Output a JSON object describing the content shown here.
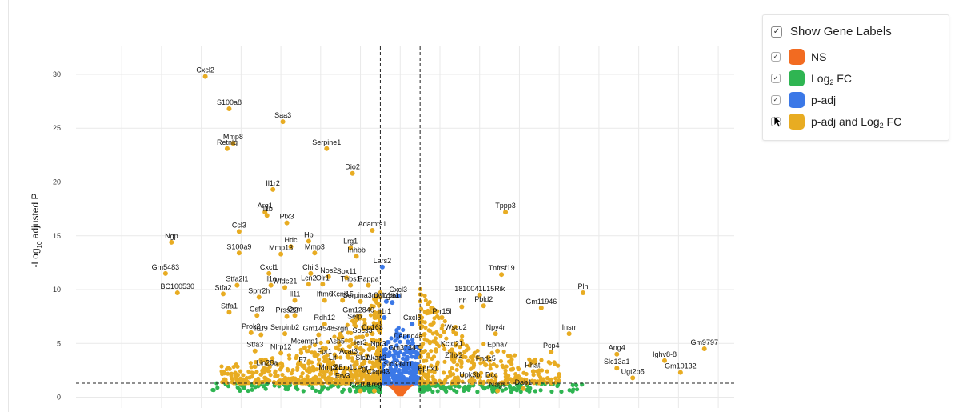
{
  "chart_data": {
    "type": "scatter",
    "title": "",
    "ylabel": "-Log10 adjusted P",
    "ylabel_main": "-Log",
    "ylabel_sub": "10",
    "ylabel_rest": " adjusted P",
    "xlabel": "",
    "ylim": [
      -1,
      32.6
    ],
    "xlim": [
      -16.3,
      16.8
    ],
    "y_ticks": [
      0,
      5,
      10,
      15,
      20,
      25,
      30
    ],
    "x_grid": [
      -14,
      -12,
      -10,
      -8,
      -6,
      -4,
      -2,
      0,
      2,
      4,
      6,
      8,
      10,
      12,
      14,
      16
    ],
    "fc_cutoffs": [
      -1,
      1
    ],
    "p_cutoff": 1.3,
    "grid": true,
    "colors": {
      "NS": "#f26b21",
      "Log2FC": "#2fb552",
      "padj": "#3b78e7",
      "both": "#e8ac22"
    },
    "labeled_genes": [
      {
        "gene": "Cxcl2",
        "x": -9.8,
        "y": 29.8
      },
      {
        "gene": "S100a8",
        "x": -8.6,
        "y": 26.8
      },
      {
        "gene": "Saa3",
        "x": -5.9,
        "y": 25.6
      },
      {
        "gene": "Mmp8",
        "x": -8.4,
        "y": 23.6
      },
      {
        "gene": "Retnlg",
        "x": -8.7,
        "y": 23.1
      },
      {
        "gene": "Serpine1",
        "x": -3.7,
        "y": 23.1
      },
      {
        "gene": "Dio2",
        "x": -2.4,
        "y": 20.8
      },
      {
        "gene": "Il1r2",
        "x": -6.4,
        "y": 19.3
      },
      {
        "gene": "Arg1",
        "x": -6.8,
        "y": 17.2
      },
      {
        "gene": "Il1b",
        "x": -6.7,
        "y": 16.9
      },
      {
        "gene": "Tppp3",
        "x": 5.3,
        "y": 17.2
      },
      {
        "gene": "Ptx3",
        "x": -5.7,
        "y": 16.2
      },
      {
        "gene": "Ccl3",
        "x": -8.1,
        "y": 15.4
      },
      {
        "gene": "Adamts1",
        "x": -1.4,
        "y": 15.5
      },
      {
        "gene": "Hp",
        "x": -4.6,
        "y": 14.5
      },
      {
        "gene": "Ngp",
        "x": -11.5,
        "y": 14.4
      },
      {
        "gene": "Hdc",
        "x": -5.5,
        "y": 14.0
      },
      {
        "gene": "Lrg1",
        "x": -2.5,
        "y": 13.9
      },
      {
        "gene": "S100a9",
        "x": -8.1,
        "y": 13.4
      },
      {
        "gene": "Mmp13",
        "x": -6.0,
        "y": 13.3
      },
      {
        "gene": "Mmp3",
        "x": -4.3,
        "y": 13.4
      },
      {
        "gene": "Inhbb",
        "x": -2.2,
        "y": 13.1
      },
      {
        "gene": "Lars2",
        "x": -0.9,
        "y": 12.1
      },
      {
        "gene": "Gm5483",
        "x": -11.8,
        "y": 11.5
      },
      {
        "gene": "Cxcl1",
        "x": -6.6,
        "y": 11.5
      },
      {
        "gene": "Chil3",
        "x": -4.5,
        "y": 11.5
      },
      {
        "gene": "Nos2",
        "x": -3.6,
        "y": 11.2
      },
      {
        "gene": "Sox11",
        "x": -2.7,
        "y": 11.1
      },
      {
        "gene": "Tnfrsf19",
        "x": 5.1,
        "y": 11.4
      },
      {
        "gene": "Stfa2l1",
        "x": -8.2,
        "y": 10.4
      },
      {
        "gene": "Il1a",
        "x": -6.5,
        "y": 10.4
      },
      {
        "gene": "Lcn2",
        "x": -4.6,
        "y": 10.5
      },
      {
        "gene": "Olr1",
        "x": -3.9,
        "y": 10.5
      },
      {
        "gene": "Wfdc21",
        "x": -5.8,
        "y": 10.2
      },
      {
        "gene": "Thbs1",
        "x": -2.5,
        "y": 10.4
      },
      {
        "gene": "Pappa",
        "x": -1.6,
        "y": 10.4
      },
      {
        "gene": "Cxcl3",
        "x": -0.1,
        "y": 9.4
      },
      {
        "gene": "Pln",
        "x": 9.2,
        "y": 9.7
      },
      {
        "gene": "BC100530",
        "x": -11.2,
        "y": 9.7
      },
      {
        "gene": "Stfa2",
        "x": -8.9,
        "y": 9.6
      },
      {
        "gene": "Sprr2h",
        "x": -7.1,
        "y": 9.3
      },
      {
        "gene": "1810041L15Rik",
        "x": 4.0,
        "y": 9.5
      },
      {
        "gene": "Il11",
        "x": -5.3,
        "y": 9.0
      },
      {
        "gene": "Iftm6",
        "x": -3.8,
        "y": 9.0
      },
      {
        "gene": "Kcnj15",
        "x": -2.9,
        "y": 9.0
      },
      {
        "gene": "Serpina3m",
        "x": -2.0,
        "y": 8.9
      },
      {
        "gene": "Col11a1",
        "x": -0.7,
        "y": 8.9
      },
      {
        "gene": "Tgfbr1",
        "x": -0.4,
        "y": 8.8
      },
      {
        "gene": "Ihh",
        "x": 3.1,
        "y": 8.4
      },
      {
        "gene": "Pbld2",
        "x": 4.2,
        "y": 8.5
      },
      {
        "gene": "Gm11946",
        "x": 7.1,
        "y": 8.3
      },
      {
        "gene": "Stfa1",
        "x": -8.6,
        "y": 7.9
      },
      {
        "gene": "Csf3",
        "x": -7.2,
        "y": 7.6
      },
      {
        "gene": "Prss22",
        "x": -5.7,
        "y": 7.5
      },
      {
        "gene": "Osm",
        "x": -5.3,
        "y": 7.6
      },
      {
        "gene": "Rdh12",
        "x": -3.8,
        "y": 6.8
      },
      {
        "gene": "Gm12840",
        "x": -2.1,
        "y": 7.5
      },
      {
        "gene": "Selp",
        "x": -2.3,
        "y": 6.9
      },
      {
        "gene": "Il1r1",
        "x": -0.8,
        "y": 7.4
      },
      {
        "gene": "Prr15l",
        "x": 2.1,
        "y": 7.4
      },
      {
        "gene": "Cxcl5",
        "x": 0.6,
        "y": 6.8
      },
      {
        "gene": "Prok2",
        "x": -7.5,
        "y": 6.0
      },
      {
        "gene": "Il1f9",
        "x": -7.0,
        "y": 5.8
      },
      {
        "gene": "Serpinb2",
        "x": -5.8,
        "y": 5.9
      },
      {
        "gene": "Gm14548",
        "x": -4.1,
        "y": 5.8
      },
      {
        "gene": "Srgn",
        "x": -3.0,
        "y": 5.8
      },
      {
        "gene": "Socs3",
        "x": -1.9,
        "y": 5.6
      },
      {
        "gene": "Cd163",
        "x": -1.4,
        "y": 5.9
      },
      {
        "gene": "Wscd2",
        "x": 2.8,
        "y": 5.9
      },
      {
        "gene": "Npy4r",
        "x": 4.8,
        "y": 5.9
      },
      {
        "gene": "Insrr",
        "x": 8.5,
        "y": 5.9
      },
      {
        "gene": "Gm9797",
        "x": 15.3,
        "y": 4.5
      },
      {
        "gene": "Dennd4a",
        "x": 0.4,
        "y": 5.1
      },
      {
        "gene": "Stfa3",
        "x": -7.3,
        "y": 4.3
      },
      {
        "gene": "Mcemp1",
        "x": -4.8,
        "y": 4.6
      },
      {
        "gene": "Asb5",
        "x": -3.2,
        "y": 4.6
      },
      {
        "gene": "Ier3",
        "x": -2.0,
        "y": 4.5
      },
      {
        "gene": "Npr3",
        "x": -1.1,
        "y": 4.4
      },
      {
        "gene": "Gm37347",
        "x": 0.2,
        "y": 4.0
      },
      {
        "gene": "Kctd21",
        "x": 2.6,
        "y": 4.4
      },
      {
        "gene": "Epha7",
        "x": 4.9,
        "y": 4.3
      },
      {
        "gene": "Pcp4",
        "x": 7.6,
        "y": 4.2
      },
      {
        "gene": "Ang4",
        "x": 10.9,
        "y": 4.0
      },
      {
        "gene": "Ighv8-8",
        "x": 13.3,
        "y": 3.4
      },
      {
        "gene": "Nlrp12",
        "x": -6.0,
        "y": 4.1
      },
      {
        "gene": "Fpr1",
        "x": -3.8,
        "y": 3.7
      },
      {
        "gene": "Acat3",
        "x": -2.6,
        "y": 3.7
      },
      {
        "gene": "Lif",
        "x": -3.4,
        "y": 3.1
      },
      {
        "gene": "Slc1",
        "x": -1.9,
        "y": 3.1
      },
      {
        "gene": "Akap2",
        "x": -1.2,
        "y": 3.1
      },
      {
        "gene": "Zfhx2",
        "x": 2.7,
        "y": 3.3
      },
      {
        "gene": "Fndc5",
        "x": 4.3,
        "y": 3.0
      },
      {
        "gene": "Slc13a1",
        "x": 10.9,
        "y": 2.7
      },
      {
        "gene": "F7",
        "x": -4.9,
        "y": 2.9
      },
      {
        "gene": "Lin28a",
        "x": -6.7,
        "y": 2.6
      },
      {
        "gene": "Mmp25",
        "x": -3.5,
        "y": 2.2
      },
      {
        "gene": "Slc39",
        "x": -0.4,
        "y": 2.5
      },
      {
        "gene": "Nit1",
        "x": 0.3,
        "y": 2.5
      },
      {
        "gene": "Sirpb1c",
        "x": -2.8,
        "y": 2.2
      },
      {
        "gene": "Pgf",
        "x": -1.9,
        "y": 2.1
      },
      {
        "gene": "Ephx1",
        "x": 1.4,
        "y": 2.1
      },
      {
        "gene": "Hhatl",
        "x": 6.7,
        "y": 2.4
      },
      {
        "gene": "Gm10132",
        "x": 14.1,
        "y": 2.3
      },
      {
        "gene": "Clap43",
        "x": -1.1,
        "y": 1.8
      },
      {
        "gene": "Upk3b",
        "x": 3.5,
        "y": 1.5
      },
      {
        "gene": "Dcc",
        "x": 4.6,
        "y": 1.5
      },
      {
        "gene": "Ugt2b5",
        "x": 11.7,
        "y": 1.8
      },
      {
        "gene": "Erv3",
        "x": -2.9,
        "y": 1.4
      },
      {
        "gene": "Cd101",
        "x": -2.0,
        "y": 0.6
      },
      {
        "gene": "Ereg",
        "x": -1.3,
        "y": 0.6
      },
      {
        "gene": "Dab1",
        "x": 6.2,
        "y": 0.8
      },
      {
        "gene": "Nags",
        "x": 4.9,
        "y": 0.6
      }
    ]
  },
  "legend": {
    "show_labels": "Show Gene Labels",
    "items": [
      {
        "key": "NS",
        "label": "NS",
        "checked": true
      },
      {
        "key": "Log2FC",
        "label_main": "Log",
        "label_sub": "2",
        "label_rest": " FC",
        "checked": true
      },
      {
        "key": "padj",
        "label": "p-adj",
        "checked": true
      },
      {
        "key": "both",
        "label_main": "p-adj and Log",
        "label_sub": "2",
        "label_rest": " FC",
        "checked": false
      }
    ]
  }
}
